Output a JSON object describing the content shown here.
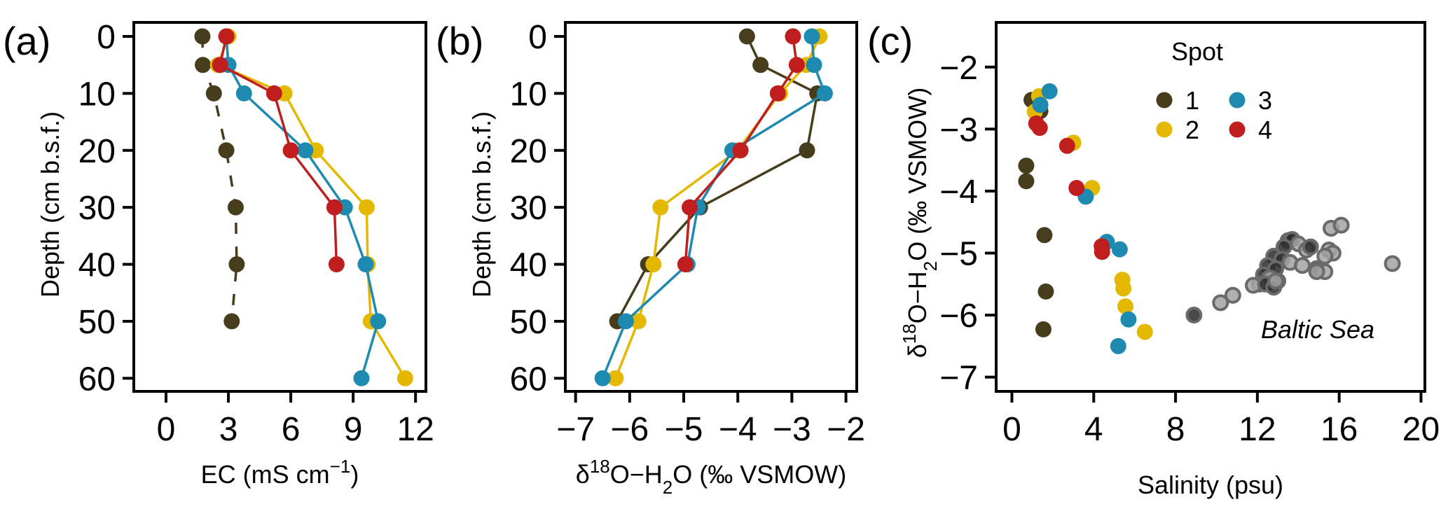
{
  "chart_data": [
    {
      "panel_label": "(a)",
      "type": "line",
      "xlabel": {
        "main": "EC (mS cm",
        "sup": "−1",
        "end": ")"
      },
      "ylabel": "Depth (cm b.s.f.)",
      "xlim": [
        -1.55,
        12.5
      ],
      "ylim": [
        -2.46,
        62.3
      ],
      "y_inverted": true,
      "xticks": [
        0,
        3,
        6,
        9,
        12
      ],
      "xtick_labels": [
        "0",
        "3",
        "6",
        "9",
        "12"
      ],
      "yticks": [
        0,
        10,
        20,
        30,
        40,
        50,
        60
      ],
      "ytick_labels": [
        "0",
        "10",
        "20",
        "30",
        "40",
        "50",
        "60"
      ],
      "series": [
        {
          "name": "1",
          "color": "#453D1C",
          "dashed": true,
          "x": [
            1.75,
            1.77,
            2.3,
            2.9,
            3.35,
            3.4,
            3.16
          ],
          "y": [
            0,
            5,
            10,
            20,
            30,
            40,
            50
          ]
        },
        {
          "name": "2",
          "color": "#E5B800",
          "dashed": false,
          "x": [
            3.0,
            2.5,
            5.7,
            7.2,
            9.65,
            9.7,
            9.85,
            11.5
          ],
          "y": [
            0,
            5,
            10,
            20,
            30,
            40,
            50,
            60
          ]
        },
        {
          "name": "3",
          "color": "#1F8AAF",
          "dashed": false,
          "x": [
            2.9,
            3.0,
            3.75,
            6.7,
            8.6,
            9.6,
            10.2,
            9.4
          ],
          "y": [
            0,
            5,
            10,
            20,
            30,
            40,
            50,
            60
          ]
        },
        {
          "name": "4",
          "color": "#C01E1E",
          "dashed": false,
          "x": [
            2.9,
            2.6,
            5.2,
            6.0,
            8.1,
            8.2
          ],
          "y": [
            0,
            5,
            10,
            20,
            30,
            40
          ]
        }
      ]
    },
    {
      "panel_label": "(b)",
      "type": "line",
      "xlabel": {
        "delta": "δ",
        "sup": "18",
        "mid": "O−H",
        "sub": "2",
        "end": "O (‰ VSMOW)"
      },
      "ylabel": "Depth (cm b.s.f.)",
      "xlim": [
        -7.19,
        -1.8
      ],
      "ylim": [
        -2.46,
        62.3
      ],
      "y_inverted": true,
      "xticks": [
        -7,
        -6,
        -5,
        -4,
        -3,
        -2
      ],
      "xtick_labels": [
        "−7",
        "−6",
        "−5",
        "−4",
        "−3",
        "−2"
      ],
      "yticks": [
        0,
        10,
        20,
        30,
        40,
        50,
        60
      ],
      "ytick_labels": [
        "0",
        "10",
        "20",
        "30",
        "40",
        "50",
        "60"
      ],
      "series": [
        {
          "name": "1",
          "color": "#453D1C",
          "dashed": false,
          "x": [
            -3.83,
            -3.58,
            -2.53,
            -2.72,
            -4.7,
            -5.66,
            -6.23
          ],
          "y": [
            0,
            5,
            10,
            20,
            30,
            40,
            50
          ]
        },
        {
          "name": "2",
          "color": "#E5B800",
          "dashed": false,
          "x": [
            -2.49,
            -2.73,
            -3.22,
            -4.0,
            -5.43,
            -5.56,
            -5.84,
            -6.26
          ],
          "y": [
            0,
            5,
            10,
            20,
            30,
            40,
            50,
            60
          ]
        },
        {
          "name": "3",
          "color": "#1F8AAF",
          "dashed": false,
          "x": [
            -2.63,
            -2.59,
            -2.39,
            -4.1,
            -4.74,
            -4.93,
            -6.07,
            -6.5
          ],
          "y": [
            0,
            5,
            10,
            20,
            30,
            40,
            50,
            60
          ]
        },
        {
          "name": "4",
          "color": "#C01E1E",
          "dashed": false,
          "x": [
            -2.98,
            -2.91,
            -3.26,
            -3.95,
            -4.89,
            -4.97
          ],
          "y": [
            0,
            5,
            10,
            20,
            30,
            40
          ]
        }
      ]
    },
    {
      "panel_label": "(c)",
      "type": "scatter",
      "xlabel": {
        "main": "Salinity (psu)"
      },
      "ylabel": {
        "delta": "δ",
        "sup": "18",
        "mid": "O−H",
        "sub": "2",
        "end": "O (‰ VSMOW)"
      },
      "xlim": [
        -0.77,
        20.19
      ],
      "ylim": [
        -7.23,
        -1.28
      ],
      "y_inverted": false,
      "xticks": [
        0,
        4,
        8,
        12,
        16,
        20
      ],
      "xtick_labels": [
        "0",
        "4",
        "8",
        "12",
        "16",
        "20"
      ],
      "yticks": [
        -2,
        -3,
        -4,
        -5,
        -6,
        -7
      ],
      "ytick_labels": [
        "−2",
        "−3",
        "−4",
        "−5",
        "−6",
        "−7"
      ],
      "legend": {
        "title": "Spot",
        "position": "top-right",
        "entries": [
          "1",
          "3",
          "2",
          "4"
        ]
      },
      "annotation": "Baltic Sea",
      "reference_series": {
        "name": "Baltic Sea",
        "fill": "#A3A3A3",
        "stroke": "#6A6A6A",
        "x": [
          15.6,
          16.1,
          13.5,
          13.7,
          14.0,
          13.3,
          14.4,
          14.6,
          15.5,
          15.7,
          15.3,
          12.8,
          13.2,
          13.6,
          12.5,
          12.9,
          14.2,
          14.9,
          15.3,
          14.9,
          12.3,
          12.6,
          13.0,
          12.1,
          11.8,
          12.4,
          12.8,
          12.9,
          18.6,
          10.8,
          10.2,
          8.9
        ],
        "y": [
          -4.6,
          -4.55,
          -4.8,
          -4.78,
          -4.85,
          -4.9,
          -4.95,
          -4.9,
          -4.95,
          -5.0,
          -5.05,
          -5.05,
          -5.1,
          -5.15,
          -5.2,
          -5.25,
          -5.2,
          -5.25,
          -5.3,
          -5.3,
          -5.35,
          -5.4,
          -5.45,
          -5.5,
          -5.52,
          -5.5,
          -5.55,
          -5.45,
          -5.17,
          -5.68,
          -5.8,
          -6.0
        ],
        "dark_center": [
          false,
          false,
          true,
          true,
          false,
          true,
          false,
          true,
          false,
          false,
          false,
          true,
          true,
          false,
          true,
          true,
          false,
          true,
          false,
          false,
          true,
          false,
          true,
          false,
          false,
          true,
          true,
          false,
          false,
          false,
          false,
          true
        ]
      },
      "series": [
        {
          "name": "1",
          "color": "#453D1C",
          "x": [
            0.96,
            1.39,
            0.7,
            0.7,
            1.59,
            1.66,
            1.54
          ],
          "y": [
            -2.53,
            -2.71,
            -3.59,
            -3.84,
            -4.71,
            -5.62,
            -6.23
          ]
        },
        {
          "name": "2",
          "color": "#E5B800",
          "x": [
            1.33,
            1.12,
            3.0,
            3.92,
            5.4,
            5.45,
            5.55,
            6.5
          ],
          "y": [
            -2.47,
            -2.72,
            -3.22,
            -3.95,
            -5.43,
            -5.57,
            -5.86,
            -6.27
          ]
        },
        {
          "name": "3",
          "color": "#1F8AAF",
          "x": [
            1.84,
            1.39,
            3.61,
            4.64,
            5.27,
            5.7,
            5.2
          ],
          "y": [
            -2.39,
            -2.61,
            -4.09,
            -4.82,
            -4.94,
            -6.07,
            -6.5
          ]
        },
        {
          "name": "4",
          "color": "#C01E1E",
          "x": [
            1.19,
            1.36,
            2.7,
            3.16,
            4.39,
            4.41
          ],
          "y": [
            -2.91,
            -2.98,
            -3.27,
            -3.95,
            -4.89,
            -4.98
          ]
        }
      ]
    }
  ]
}
